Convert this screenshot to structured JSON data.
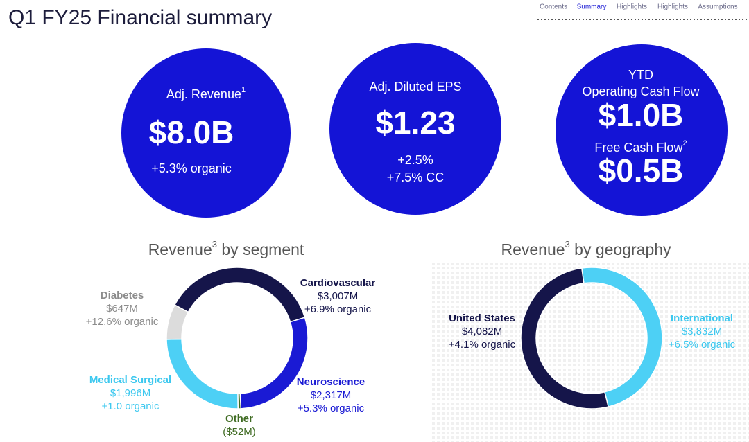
{
  "title": "Q1 FY25 Financial summary",
  "nav": [
    "Contents",
    "Summary",
    "Highlights",
    "Highlights",
    "Assumptions"
  ],
  "kpis": [
    {
      "label": [
        "Adj. Revenue"
      ],
      "sup": "1",
      "value": "$8.0B",
      "notes": [
        "+5.3% organic"
      ]
    },
    {
      "label": [
        "Adj. Diluted EPS"
      ],
      "value": "$1.23",
      "notes": [
        "+2.5%",
        "+7.5% CC"
      ]
    },
    {
      "label": [
        "YTD",
        "Operating Cash Flow"
      ],
      "value": "$1.0B"
    },
    {
      "label": [
        "Free Cash Flow"
      ],
      "sup": "2",
      "value": "$0.5B"
    }
  ],
  "chart_data": [
    {
      "type": "pie",
      "title": "Revenue",
      "title_sup": "3",
      "title_rest": " by segment",
      "categories": [
        "Cardiovascular",
        "Neuroscience",
        "Other",
        "Medical Surgical",
        "Diabetes"
      ],
      "values": [
        3007,
        2317,
        -52,
        1996,
        647
      ],
      "value_labels": [
        "$3,007M",
        "$2,317M",
        "($52M)",
        "$1,996M",
        "$647M"
      ],
      "notes": [
        "+6.9% organic",
        "+5.3% organic",
        null,
        "+1.0 organic",
        "+12.6% organic"
      ],
      "colors": [
        "#15154a",
        "#1a1ad4",
        "#3f6b22",
        "#4dd0f5",
        "#dcdcdc"
      ],
      "label_colors": [
        "#15154a",
        "#1a1ad4",
        "#3f6b22",
        "#3cc8ef",
        "#8c8c8c"
      ]
    },
    {
      "type": "pie",
      "title": "Revenue",
      "title_sup": "3",
      "title_rest": " by geography",
      "categories": [
        "International",
        "United States"
      ],
      "values": [
        3832,
        4082
      ],
      "value_labels": [
        "$3,832M",
        "$4,082M"
      ],
      "notes": [
        "+6.5% organic",
        "+4.1% organic"
      ],
      "colors": [
        "#4dd0f5",
        "#15154a"
      ],
      "label_colors": [
        "#3cc8ef",
        "#15154a"
      ]
    }
  ]
}
